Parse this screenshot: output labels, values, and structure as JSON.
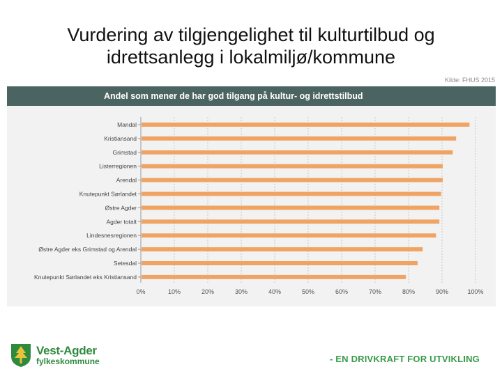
{
  "slide": {
    "title_line1": "Vurdering av tilgjengelighet til kulturtilbud og",
    "title_line2": "idrettsanlegg i lokalmiljø/kommune",
    "source": "Kilde: FHUS 2015"
  },
  "footer": {
    "org_name_line1": "Vest-Agder",
    "org_name_line2": "fylkeskommune",
    "slogan": "- EN DRIVKRAFT FOR UTVIKLING",
    "logo_icon": "tree-crest-icon"
  },
  "colors": {
    "bar": "#f0a464",
    "header": "#4b6462",
    "grid": "#c8c8c8",
    "brand_green": "#2e8b3e"
  },
  "chart_data": {
    "type": "bar",
    "orientation": "horizontal",
    "title": "Andel som mener de har god tilgang på kultur- og idrettstilbud",
    "xlabel": "",
    "ylabel": "",
    "xlim": [
      0,
      100
    ],
    "categories": [
      "Mandal",
      "Kristiansand",
      "Grimstad",
      "Listerregionen",
      "Arendal",
      "Knutepunkt Sørlandet",
      "Østre Agder",
      "Agder totalt",
      "Lindesnesregionen",
      "Østre Agder eks Grimstad og Arendal",
      "Setesdal",
      "Knutepunkt Sørlandet eks Kristiansand"
    ],
    "values": [
      98,
      94,
      93,
      90,
      90,
      89.5,
      89,
      89,
      88,
      84,
      82.5,
      79
    ],
    "x_ticks": [
      "0%",
      "10%",
      "20%",
      "30%",
      "40%",
      "50%",
      "60%",
      "70%",
      "80%",
      "90%",
      "100%"
    ],
    "grid": true,
    "legend": "none"
  }
}
